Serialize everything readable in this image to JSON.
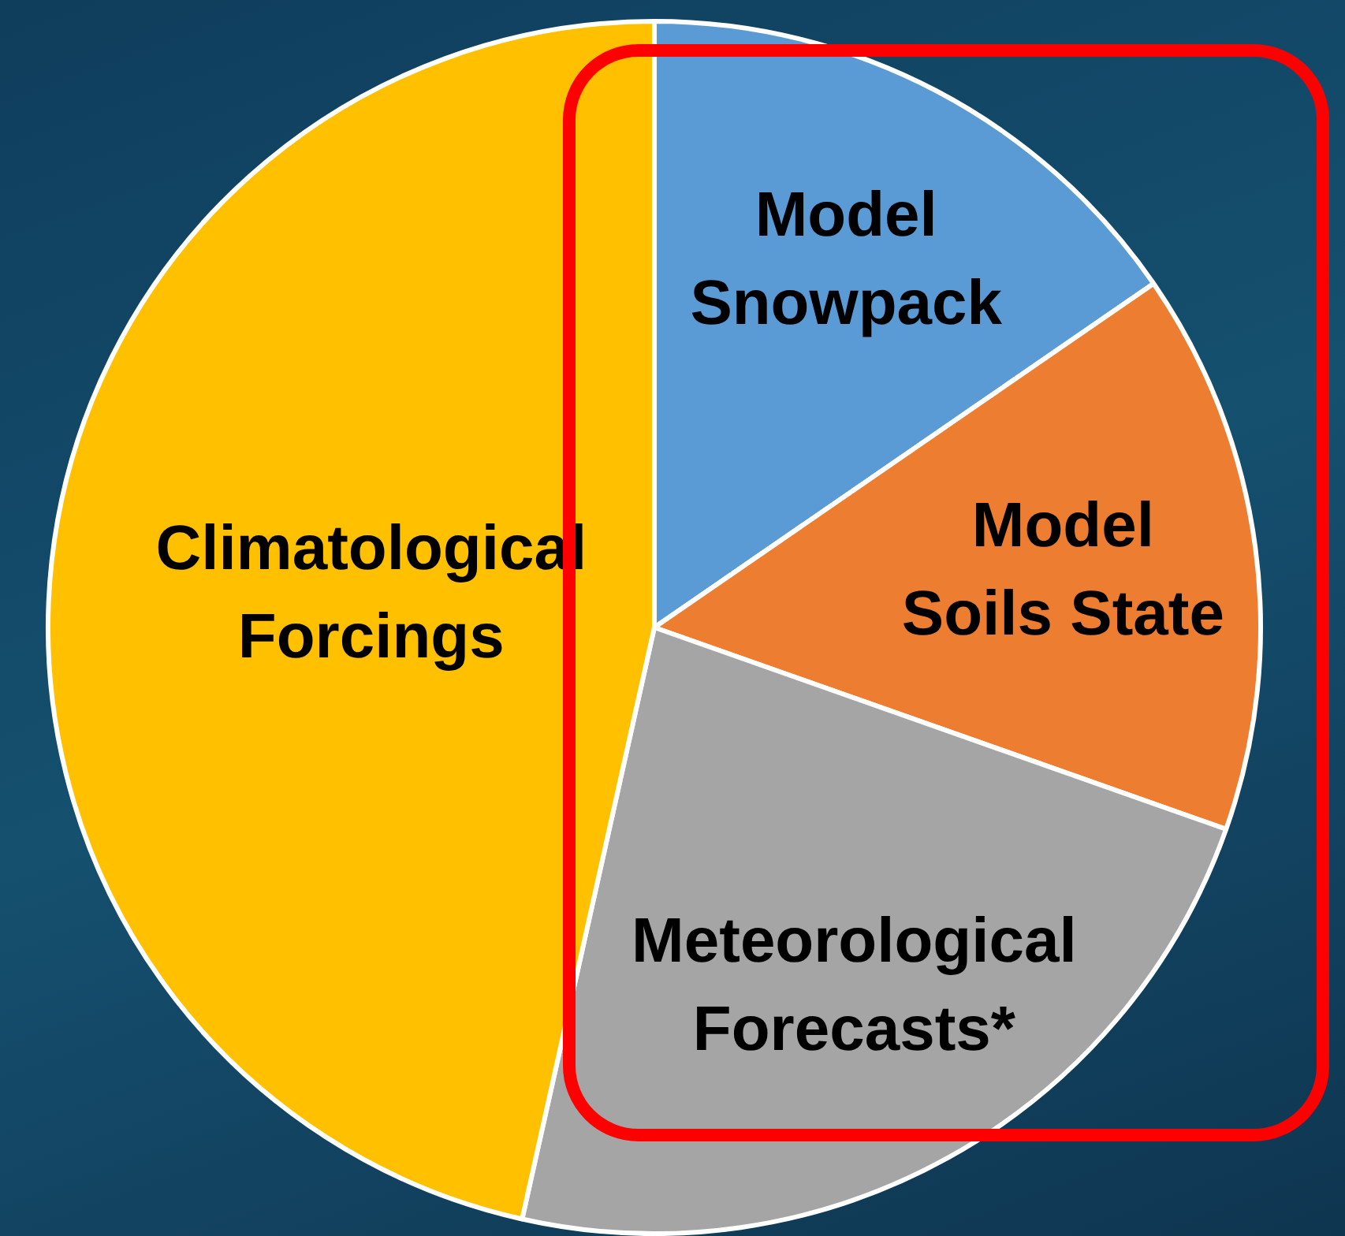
{
  "chart_data": {
    "type": "pie",
    "categories": [
      "Model\nSnowpack",
      "Model\nSoils State",
      "Meteorological\nForecasts*",
      "Climatological\nForcings"
    ],
    "values": [
      15.4,
      15.0,
      23.1,
      46.5
    ],
    "colors": [
      "#5b9bd5",
      "#ed7d31",
      "#a5a5a5",
      "#ffc000"
    ],
    "legend": false
  }
}
